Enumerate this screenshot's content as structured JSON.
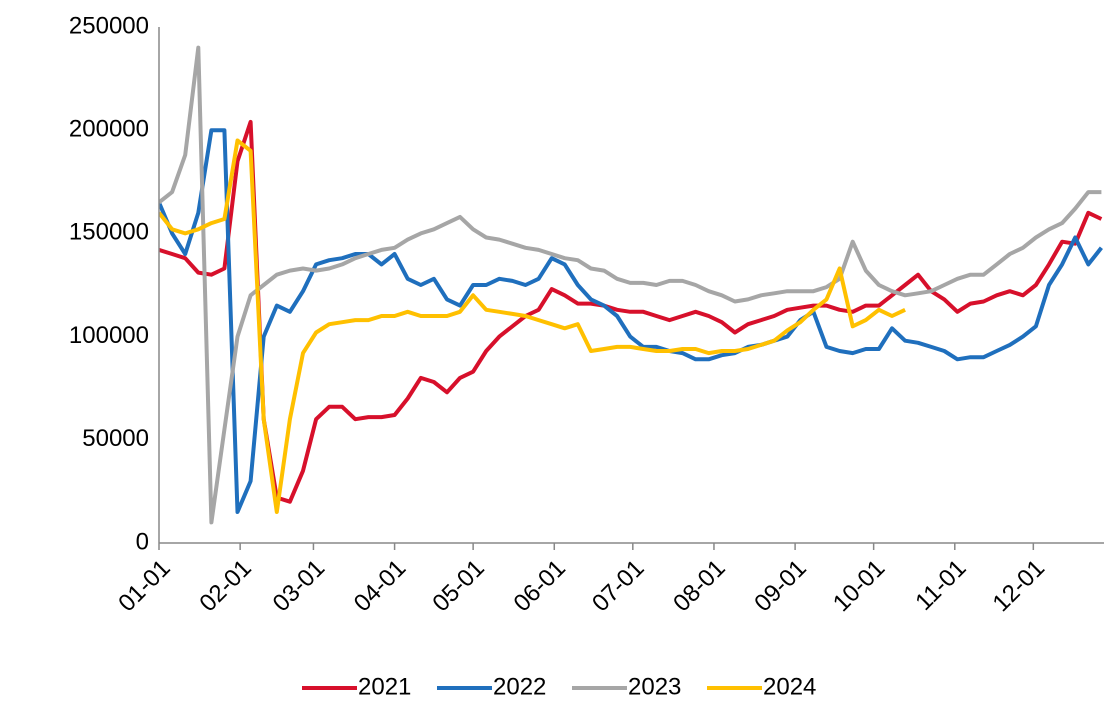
{
  "chart_data": {
    "type": "line",
    "x": [
      0,
      5,
      10,
      15,
      20,
      25,
      30,
      35,
      40,
      45,
      50,
      55,
      60,
      65,
      70,
      75,
      80,
      85,
      90,
      95,
      100,
      105,
      110,
      115,
      120,
      125,
      130,
      135,
      140,
      145,
      150,
      155,
      160,
      165,
      170,
      175,
      180,
      185,
      190,
      195,
      200,
      205,
      210,
      215,
      220,
      225,
      230,
      235,
      240,
      245,
      250,
      255,
      260,
      265,
      270,
      275,
      280,
      285,
      290,
      295,
      300,
      305,
      310,
      315,
      320,
      325,
      330,
      335,
      340,
      345,
      350,
      355,
      360
    ],
    "xlim": [
      0,
      361
    ],
    "xticks": [
      {
        "value": 0,
        "label": "01-01"
      },
      {
        "value": 31,
        "label": "02-01"
      },
      {
        "value": 59,
        "label": "03-01"
      },
      {
        "value": 90,
        "label": "04-01"
      },
      {
        "value": 120,
        "label": "05-01"
      },
      {
        "value": 151,
        "label": "06-01"
      },
      {
        "value": 181,
        "label": "07-01"
      },
      {
        "value": 212,
        "label": "08-01"
      },
      {
        "value": 243,
        "label": "09-01"
      },
      {
        "value": 273,
        "label": "10-01"
      },
      {
        "value": 304,
        "label": "11-01"
      },
      {
        "value": 334,
        "label": "12-01"
      }
    ],
    "ylim": [
      0,
      250000
    ],
    "yticks": [
      0,
      50000,
      100000,
      150000,
      200000,
      250000
    ],
    "grid": false,
    "legend": "bottom",
    "series": [
      {
        "name": "2021",
        "color": "#d7102b",
        "values": [
          142000,
          140000,
          138000,
          131000,
          130000,
          133000,
          185000,
          204000,
          60000,
          22000,
          20000,
          35000,
          60000,
          66000,
          66000,
          60000,
          61000,
          61000,
          62000,
          70000,
          80000,
          78000,
          73000,
          80000,
          83000,
          93000,
          100000,
          105000,
          110000,
          113000,
          123000,
          120000,
          116000,
          116000,
          115000,
          113000,
          112000,
          112000,
          110000,
          108000,
          110000,
          112000,
          110000,
          107000,
          102000,
          106000,
          108000,
          110000,
          113000,
          114000,
          115000,
          115000,
          113000,
          112000,
          115000,
          115000,
          120000,
          125000,
          130000,
          122000,
          118000,
          112000,
          116000,
          117000,
          120000,
          122000,
          120000,
          125000,
          135000,
          146000,
          145000,
          160000,
          157000
        ]
      },
      {
        "name": "2022",
        "color": "#1f6fbd",
        "values": [
          165000,
          150000,
          140000,
          160000,
          200000,
          200000,
          15000,
          30000,
          100000,
          115000,
          112000,
          122000,
          135000,
          137000,
          138000,
          140000,
          140000,
          135000,
          140000,
          128000,
          125000,
          128000,
          118000,
          115000,
          125000,
          125000,
          128000,
          127000,
          125000,
          128000,
          138000,
          135000,
          125000,
          118000,
          115000,
          110000,
          100000,
          95000,
          95000,
          93000,
          92000,
          89000,
          89000,
          91000,
          92000,
          95000,
          96000,
          98000,
          100000,
          108000,
          112000,
          95000,
          93000,
          92000,
          94000,
          94000,
          104000,
          98000,
          97000,
          95000,
          93000,
          89000,
          90000,
          90000,
          93000,
          96000,
          100000,
          105000,
          125000,
          135000,
          148000,
          135000,
          143000
        ]
      },
      {
        "name": "2023",
        "color": "#a6a6a6",
        "values": [
          165000,
          170000,
          188000,
          240000,
          10000,
          55000,
          100000,
          120000,
          125000,
          130000,
          132000,
          133000,
          132000,
          133000,
          135000,
          138000,
          140000,
          142000,
          143000,
          147000,
          150000,
          152000,
          155000,
          158000,
          152000,
          148000,
          147000,
          145000,
          143000,
          142000,
          140000,
          138000,
          137000,
          133000,
          132000,
          128000,
          126000,
          126000,
          125000,
          127000,
          127000,
          125000,
          122000,
          120000,
          117000,
          118000,
          120000,
          121000,
          122000,
          122000,
          122000,
          124000,
          128000,
          146000,
          132000,
          125000,
          122000,
          120000,
          121000,
          122000,
          125000,
          128000,
          130000,
          130000,
          135000,
          140000,
          143000,
          148000,
          152000,
          155000,
          162000,
          170000,
          170000
        ]
      },
      {
        "name": "2024",
        "color": "#ffc000",
        "values": [
          160000,
          152000,
          150000,
          152000,
          155000,
          157000,
          195000,
          190000,
          60000,
          15000,
          60000,
          92000,
          102000,
          106000,
          107000,
          108000,
          108000,
          110000,
          110000,
          112000,
          110000,
          110000,
          110000,
          112000,
          120000,
          113000,
          112000,
          111000,
          110000,
          108000,
          106000,
          104000,
          106000,
          93000,
          94000,
          95000,
          95000,
          94000,
          93000,
          93000,
          94000,
          94000,
          92000,
          93000,
          93000,
          94000,
          96000,
          98000,
          103000,
          107000,
          113000,
          118000,
          133000,
          105000,
          108000,
          113000,
          110000,
          113000,
          null,
          null,
          null,
          null,
          null,
          null,
          null,
          null,
          null,
          null,
          null,
          null,
          null,
          null,
          null
        ]
      }
    ]
  }
}
